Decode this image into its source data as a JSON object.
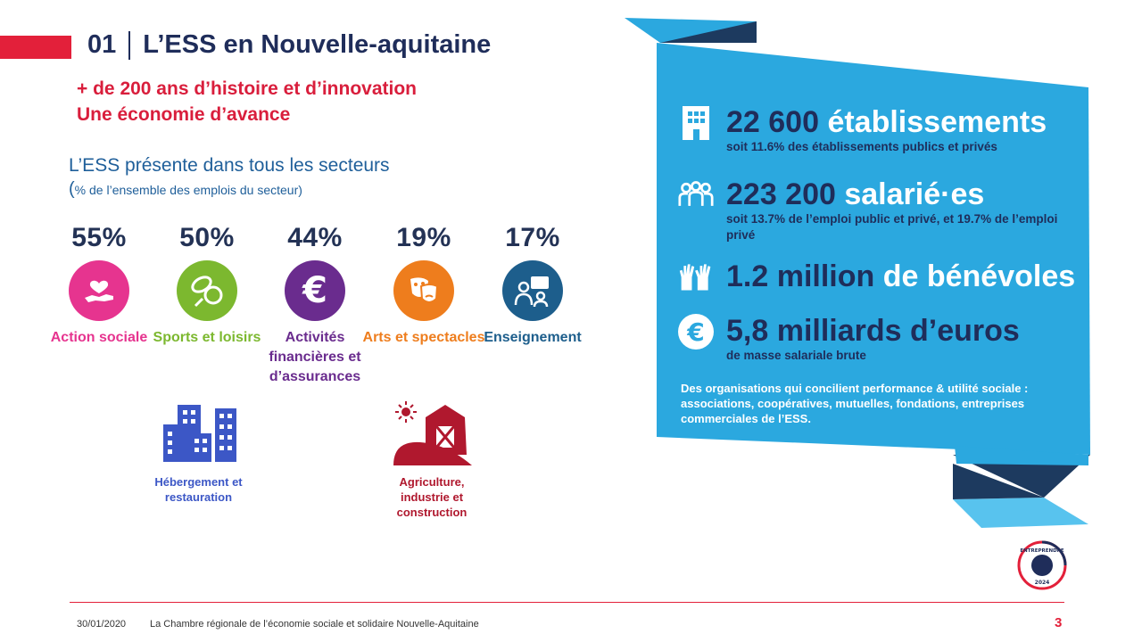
{
  "header": {
    "number": "01",
    "title": "L’ESS en Nouvelle-aquitaine",
    "subtitle_line1": "+ de 200 ans d’histoire et d’innovation",
    "subtitle_line2": "Une économie d’avance"
  },
  "sectors_intro": {
    "title": "L’ESS présente dans tous les secteurs",
    "note_paren": "(",
    "note": "% de l’ensemble des emplois du secteur)"
  },
  "sectors": [
    {
      "pct": "55%",
      "label": "Action sociale",
      "color": "#e6348f",
      "icon": "heart-hand-icon"
    },
    {
      "pct": "50%",
      "label": "Sports et loisirs",
      "color": "#7cb82f",
      "icon": "sports-balls-icon"
    },
    {
      "pct": "44%",
      "label": "Activités financières et d’assurances",
      "color": "#6a2c8e",
      "icon": "euro-icon"
    },
    {
      "pct": "19%",
      "label": "Arts et spectacles",
      "color": "#ee7d1d",
      "icon": "theater-masks-icon"
    },
    {
      "pct": "17%",
      "label": "Enseignement",
      "color": "#1d5e8c",
      "icon": "teaching-icon"
    }
  ],
  "other_sectors": [
    {
      "label": "Hébergement et restauration",
      "color": "#3c57c6",
      "icon": "buildings-icon"
    },
    {
      "label": "Agriculture, industrie et construction",
      "color": "#b0182e",
      "icon": "barn-icon"
    }
  ],
  "panel": {
    "stats": [
      {
        "number": "22 600",
        "word": "établissements",
        "sub": "soit 11.6% des établissements publics et privés",
        "icon": "building-icon"
      },
      {
        "number": "223 200",
        "word": "salarié·es",
        "sub": "soit 13.7% de l’emploi public et privé, et 19.7% de l’emploi privé",
        "icon": "people-icon"
      },
      {
        "number": "1.2 million",
        "word": "de bénévoles",
        "sub": "",
        "icon": "raised-hands-icon"
      },
      {
        "number": "5,8 milliards d’euros",
        "word": "",
        "sub": "de masse salariale brute",
        "icon": "euro-circle-icon"
      }
    ],
    "note": "Des organisations qui concilient performance & utilité sociale : associations, coopératives, mutuelles, fondations, entreprises commerciales de l’ESS."
  },
  "badge": {
    "text": "ENTREPRENDRE 2024"
  },
  "footer": {
    "date": "30/01/2020",
    "org": "La Chambre régionale de l’économie sociale et solidaire Nouvelle-Aquitaine",
    "page": "3"
  },
  "colors": {
    "navy": "#1f2d5a",
    "red": "#e3203a",
    "panel_blue": "#2ba8df",
    "panel_dark": "#1d3a5f",
    "panel_light": "#58c3ee"
  }
}
